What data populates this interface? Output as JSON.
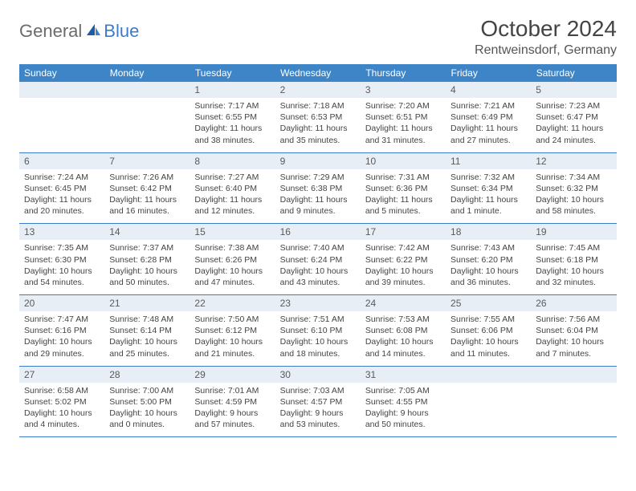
{
  "logo": {
    "general": "General",
    "blue": "Blue"
  },
  "title": "October 2024",
  "location": "Rentweinsdorf, Germany",
  "colors": {
    "header_bg": "#3d85c6",
    "header_text": "#ffffff",
    "daynum_bg": "#e8eef5",
    "row_border": "#3d7cc9",
    "logo_gray": "#6b6b6b",
    "logo_blue": "#3d7cc9",
    "body_text": "#444444"
  },
  "weekdays": [
    "Sunday",
    "Monday",
    "Tuesday",
    "Wednesday",
    "Thursday",
    "Friday",
    "Saturday"
  ],
  "weeks": [
    [
      {
        "n": "",
        "sunrise": "",
        "sunset": "",
        "daylight": ""
      },
      {
        "n": "",
        "sunrise": "",
        "sunset": "",
        "daylight": ""
      },
      {
        "n": "1",
        "sunrise": "Sunrise: 7:17 AM",
        "sunset": "Sunset: 6:55 PM",
        "daylight": "Daylight: 11 hours and 38 minutes."
      },
      {
        "n": "2",
        "sunrise": "Sunrise: 7:18 AM",
        "sunset": "Sunset: 6:53 PM",
        "daylight": "Daylight: 11 hours and 35 minutes."
      },
      {
        "n": "3",
        "sunrise": "Sunrise: 7:20 AM",
        "sunset": "Sunset: 6:51 PM",
        "daylight": "Daylight: 11 hours and 31 minutes."
      },
      {
        "n": "4",
        "sunrise": "Sunrise: 7:21 AM",
        "sunset": "Sunset: 6:49 PM",
        "daylight": "Daylight: 11 hours and 27 minutes."
      },
      {
        "n": "5",
        "sunrise": "Sunrise: 7:23 AM",
        "sunset": "Sunset: 6:47 PM",
        "daylight": "Daylight: 11 hours and 24 minutes."
      }
    ],
    [
      {
        "n": "6",
        "sunrise": "Sunrise: 7:24 AM",
        "sunset": "Sunset: 6:45 PM",
        "daylight": "Daylight: 11 hours and 20 minutes."
      },
      {
        "n": "7",
        "sunrise": "Sunrise: 7:26 AM",
        "sunset": "Sunset: 6:42 PM",
        "daylight": "Daylight: 11 hours and 16 minutes."
      },
      {
        "n": "8",
        "sunrise": "Sunrise: 7:27 AM",
        "sunset": "Sunset: 6:40 PM",
        "daylight": "Daylight: 11 hours and 12 minutes."
      },
      {
        "n": "9",
        "sunrise": "Sunrise: 7:29 AM",
        "sunset": "Sunset: 6:38 PM",
        "daylight": "Daylight: 11 hours and 9 minutes."
      },
      {
        "n": "10",
        "sunrise": "Sunrise: 7:31 AM",
        "sunset": "Sunset: 6:36 PM",
        "daylight": "Daylight: 11 hours and 5 minutes."
      },
      {
        "n": "11",
        "sunrise": "Sunrise: 7:32 AM",
        "sunset": "Sunset: 6:34 PM",
        "daylight": "Daylight: 11 hours and 1 minute."
      },
      {
        "n": "12",
        "sunrise": "Sunrise: 7:34 AM",
        "sunset": "Sunset: 6:32 PM",
        "daylight": "Daylight: 10 hours and 58 minutes."
      }
    ],
    [
      {
        "n": "13",
        "sunrise": "Sunrise: 7:35 AM",
        "sunset": "Sunset: 6:30 PM",
        "daylight": "Daylight: 10 hours and 54 minutes."
      },
      {
        "n": "14",
        "sunrise": "Sunrise: 7:37 AM",
        "sunset": "Sunset: 6:28 PM",
        "daylight": "Daylight: 10 hours and 50 minutes."
      },
      {
        "n": "15",
        "sunrise": "Sunrise: 7:38 AM",
        "sunset": "Sunset: 6:26 PM",
        "daylight": "Daylight: 10 hours and 47 minutes."
      },
      {
        "n": "16",
        "sunrise": "Sunrise: 7:40 AM",
        "sunset": "Sunset: 6:24 PM",
        "daylight": "Daylight: 10 hours and 43 minutes."
      },
      {
        "n": "17",
        "sunrise": "Sunrise: 7:42 AM",
        "sunset": "Sunset: 6:22 PM",
        "daylight": "Daylight: 10 hours and 39 minutes."
      },
      {
        "n": "18",
        "sunrise": "Sunrise: 7:43 AM",
        "sunset": "Sunset: 6:20 PM",
        "daylight": "Daylight: 10 hours and 36 minutes."
      },
      {
        "n": "19",
        "sunrise": "Sunrise: 7:45 AM",
        "sunset": "Sunset: 6:18 PM",
        "daylight": "Daylight: 10 hours and 32 minutes."
      }
    ],
    [
      {
        "n": "20",
        "sunrise": "Sunrise: 7:47 AM",
        "sunset": "Sunset: 6:16 PM",
        "daylight": "Daylight: 10 hours and 29 minutes."
      },
      {
        "n": "21",
        "sunrise": "Sunrise: 7:48 AM",
        "sunset": "Sunset: 6:14 PM",
        "daylight": "Daylight: 10 hours and 25 minutes."
      },
      {
        "n": "22",
        "sunrise": "Sunrise: 7:50 AM",
        "sunset": "Sunset: 6:12 PM",
        "daylight": "Daylight: 10 hours and 21 minutes."
      },
      {
        "n": "23",
        "sunrise": "Sunrise: 7:51 AM",
        "sunset": "Sunset: 6:10 PM",
        "daylight": "Daylight: 10 hours and 18 minutes."
      },
      {
        "n": "24",
        "sunrise": "Sunrise: 7:53 AM",
        "sunset": "Sunset: 6:08 PM",
        "daylight": "Daylight: 10 hours and 14 minutes."
      },
      {
        "n": "25",
        "sunrise": "Sunrise: 7:55 AM",
        "sunset": "Sunset: 6:06 PM",
        "daylight": "Daylight: 10 hours and 11 minutes."
      },
      {
        "n": "26",
        "sunrise": "Sunrise: 7:56 AM",
        "sunset": "Sunset: 6:04 PM",
        "daylight": "Daylight: 10 hours and 7 minutes."
      }
    ],
    [
      {
        "n": "27",
        "sunrise": "Sunrise: 6:58 AM",
        "sunset": "Sunset: 5:02 PM",
        "daylight": "Daylight: 10 hours and 4 minutes."
      },
      {
        "n": "28",
        "sunrise": "Sunrise: 7:00 AM",
        "sunset": "Sunset: 5:00 PM",
        "daylight": "Daylight: 10 hours and 0 minutes."
      },
      {
        "n": "29",
        "sunrise": "Sunrise: 7:01 AM",
        "sunset": "Sunset: 4:59 PM",
        "daylight": "Daylight: 9 hours and 57 minutes."
      },
      {
        "n": "30",
        "sunrise": "Sunrise: 7:03 AM",
        "sunset": "Sunset: 4:57 PM",
        "daylight": "Daylight: 9 hours and 53 minutes."
      },
      {
        "n": "31",
        "sunrise": "Sunrise: 7:05 AM",
        "sunset": "Sunset: 4:55 PM",
        "daylight": "Daylight: 9 hours and 50 minutes."
      },
      {
        "n": "",
        "sunrise": "",
        "sunset": "",
        "daylight": ""
      },
      {
        "n": "",
        "sunrise": "",
        "sunset": "",
        "daylight": ""
      }
    ]
  ]
}
